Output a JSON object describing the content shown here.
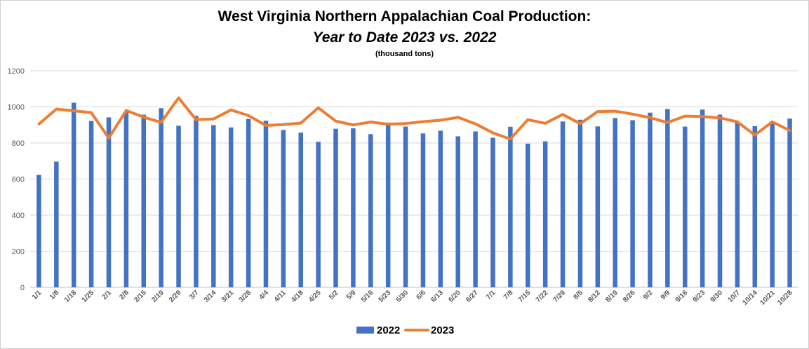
{
  "chart_data": {
    "type": "bar",
    "title": "West Virginia Northern Appalachian Coal Production:",
    "subtitle": "Year to Date 2023 vs. 2022",
    "unit": "(thousand tons)",
    "ylim": [
      0,
      1200
    ],
    "yticks": [
      0,
      200,
      400,
      600,
      800,
      1000,
      1200
    ],
    "grid": true,
    "legend": "bottom",
    "categories": [
      "1/1",
      "1/8",
      "1/18",
      "1/25",
      "2/1",
      "2/8",
      "2/15",
      "2/19",
      "2/29",
      "3/7",
      "3/14",
      "3/21",
      "3/28",
      "4/4",
      "4/11",
      "4/18",
      "4/25",
      "5/2",
      "5/9",
      "5/16",
      "5/23",
      "5/30",
      "6/6",
      "6/13",
      "6/20",
      "6/27",
      "7/1",
      "7/8",
      "7/15",
      "7/22",
      "7/29",
      "8/5",
      "8/12",
      "8/19",
      "8/26",
      "9/2",
      "9/9",
      "9/16",
      "9/23",
      "9/30",
      "10/7",
      "10/14",
      "10/21",
      "10/28"
    ],
    "series": [
      {
        "name": "2022",
        "type": "bar",
        "color": "#4472C4",
        "values": [
          623,
          697,
          1023,
          922,
          942,
          972,
          957,
          993,
          895,
          950,
          899,
          886,
          933,
          923,
          872,
          857,
          806,
          879,
          881,
          849,
          913,
          891,
          853,
          868,
          837,
          864,
          829,
          890,
          796,
          809,
          919,
          929,
          892,
          938,
          926,
          968,
          988,
          891,
          985,
          957,
          915,
          893,
          917,
          935
        ]
      },
      {
        "name": "2023",
        "type": "line",
        "color": "#ED7D31",
        "values": [
          905,
          988,
          978,
          968,
          827,
          980,
          943,
          914,
          1050,
          929,
          933,
          983,
          952,
          897,
          902,
          910,
          995,
          921,
          900,
          916,
          904,
          908,
          918,
          926,
          942,
          906,
          856,
          822,
          929,
          909,
          958,
          907,
          974,
          976,
          960,
          940,
          913,
          949,
          946,
          939,
          917,
          844,
          917,
          869
        ]
      }
    ]
  }
}
